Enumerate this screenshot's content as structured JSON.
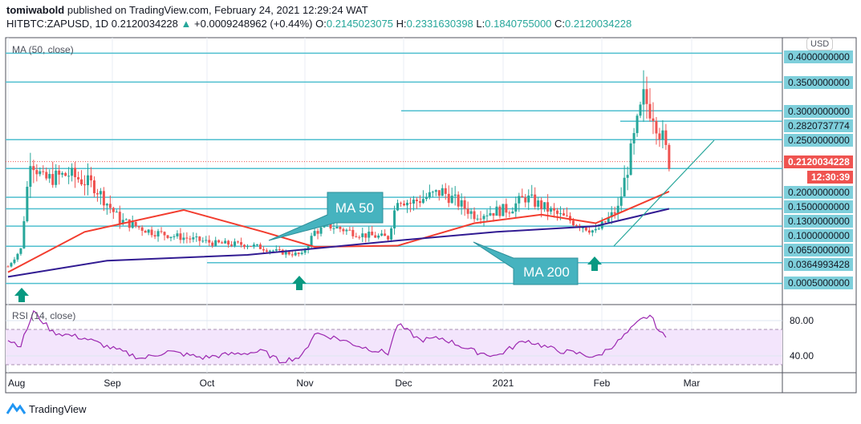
{
  "header": {
    "publisher": "tomiwabold",
    "published_text": "published on TradingView.com, February 24, 2021 12:29:24 WAT",
    "symbol": "HITBTC:ZAPUSD, 1D",
    "last": "0.2120034228",
    "change": "+0.0009248962 (+0.44%)",
    "o_label": "O:",
    "o": "0.2145023075",
    "h_label": "H:",
    "h": "0.2331630398",
    "l_label": "L:",
    "l": "0.1840755000",
    "c_label": "C:",
    "c": "0.2120034228"
  },
  "chart_data": {
    "type": "candlestick",
    "ma_label": "MA (50, close)",
    "rsi_label": "RSI (14, close)",
    "currency": "USD",
    "price_levels": [
      "0.4000000000",
      "0.3500000000",
      "0.3000000000",
      "0.2820737774",
      "0.2500000000",
      "0.2000000000",
      "0.1500000000",
      "0.1300000000",
      "0.1000000000",
      "0.0650000000",
      "0.0364993428",
      "0.0005000000"
    ],
    "last_price": "0.2120034228",
    "countdown": "12:30:39",
    "x_ticks": [
      "Aug",
      "Sep",
      "Oct",
      "Nov",
      "Dec",
      "2021",
      "Feb",
      "Mar"
    ],
    "rsi_ticks": [
      "80.00",
      "40.00"
    ],
    "close_series": [
      [
        "2020-08-01",
        0.03
      ],
      [
        "2020-08-05",
        0.06
      ],
      [
        "2020-08-08",
        0.22
      ],
      [
        "2020-08-12",
        0.18
      ],
      [
        "2020-08-20",
        0.19
      ],
      [
        "2020-08-28",
        0.17
      ],
      [
        "2020-09-05",
        0.11
      ],
      [
        "2020-09-15",
        0.09
      ],
      [
        "2020-09-25",
        0.08
      ],
      [
        "2020-10-05",
        0.07
      ],
      [
        "2020-10-15",
        0.068
      ],
      [
        "2020-10-25",
        0.055
      ],
      [
        "2020-11-01",
        0.05
      ],
      [
        "2020-11-05",
        0.09
      ],
      [
        "2020-11-10",
        0.1
      ],
      [
        "2020-11-20",
        0.085
      ],
      [
        "2020-11-28",
        0.08
      ],
      [
        "2020-12-01",
        0.15
      ],
      [
        "2020-12-05",
        0.14
      ],
      [
        "2020-12-15",
        0.16
      ],
      [
        "2020-12-25",
        0.12
      ],
      [
        "2021-01-05",
        0.13
      ],
      [
        "2021-01-10",
        0.15
      ],
      [
        "2021-01-20",
        0.12
      ],
      [
        "2021-01-28",
        0.1
      ],
      [
        "2021-02-01",
        0.09
      ],
      [
        "2021-02-08",
        0.13
      ],
      [
        "2021-02-13",
        0.25
      ],
      [
        "2021-02-16",
        0.32
      ],
      [
        "2021-02-19",
        0.3
      ],
      [
        "2021-02-22",
        0.25
      ],
      [
        "2021-02-24",
        0.212
      ]
    ],
    "ma50": [
      [
        "2020-08-01",
        0.02
      ],
      [
        "2020-08-25",
        0.09
      ],
      [
        "2020-09-25",
        0.128
      ],
      [
        "2020-10-20",
        0.09
      ],
      [
        "2020-11-05",
        0.064
      ],
      [
        "2020-12-01",
        0.066
      ],
      [
        "2020-12-25",
        0.105
      ],
      [
        "2021-01-15",
        0.12
      ],
      [
        "2021-02-01",
        0.105
      ],
      [
        "2021-02-24",
        0.16
      ]
    ],
    "ma200": [
      [
        "2020-08-01",
        0.012
      ],
      [
        "2020-09-01",
        0.04
      ],
      [
        "2020-10-15",
        0.05
      ],
      [
        "2020-12-01",
        0.075
      ],
      [
        "2021-01-01",
        0.09
      ],
      [
        "2021-02-01",
        0.1
      ],
      [
        "2021-02-24",
        0.13
      ]
    ],
    "rsi": [
      [
        "2020-08-01",
        58
      ],
      [
        "2020-08-05",
        52
      ],
      [
        "2020-08-09",
        90
      ],
      [
        "2020-08-15",
        67
      ],
      [
        "2020-08-25",
        60
      ],
      [
        "2020-09-03",
        48
      ],
      [
        "2020-09-12",
        37
      ],
      [
        "2020-09-20",
        45
      ],
      [
        "2020-10-01",
        38
      ],
      [
        "2020-10-10",
        42
      ],
      [
        "2020-10-20",
        45
      ],
      [
        "2020-10-25",
        34
      ],
      [
        "2020-11-01",
        39
      ],
      [
        "2020-11-05",
        66
      ],
      [
        "2020-11-12",
        60
      ],
      [
        "2020-11-20",
        50
      ],
      [
        "2020-11-28",
        43
      ],
      [
        "2020-12-01",
        76
      ],
      [
        "2020-12-08",
        58
      ],
      [
        "2020-12-15",
        60
      ],
      [
        "2020-12-25",
        45
      ],
      [
        "2021-01-01",
        40
      ],
      [
        "2021-01-10",
        58
      ],
      [
        "2021-01-20",
        46
      ],
      [
        "2021-01-28",
        42
      ],
      [
        "2021-02-01",
        38
      ],
      [
        "2021-02-08",
        56
      ],
      [
        "2021-02-15",
        80
      ],
      [
        "2021-02-18",
        86
      ],
      [
        "2021-02-21",
        68
      ],
      [
        "2021-02-24",
        56
      ]
    ],
    "annotations": [
      "MA 50",
      "MA 200"
    ],
    "colors": {
      "up": "#26a69a",
      "down": "#ef5350",
      "ma50": "#f23c2e",
      "ma200": "#311b92",
      "levels": "#4fbfcf",
      "rsi": "#9c27b0",
      "callout": "#46b3bf"
    }
  },
  "footer": {
    "brand": "TradingView"
  }
}
